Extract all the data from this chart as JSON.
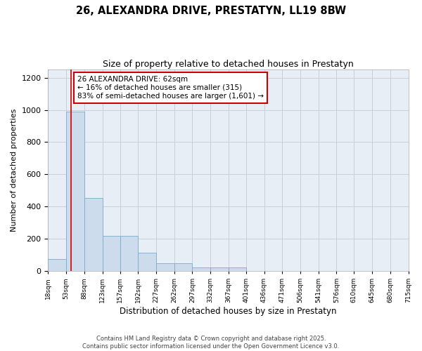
{
  "title1": "26, ALEXANDRA DRIVE, PRESTATYN, LL19 8BW",
  "title2": "Size of property relative to detached houses in Prestatyn",
  "xlabel": "Distribution of detached houses by size in Prestatyn",
  "ylabel": "Number of detached properties",
  "bin_edges": [
    18,
    53,
    88,
    123,
    157,
    192,
    227,
    262,
    297,
    332,
    367,
    401,
    436,
    471,
    506,
    541,
    576,
    610,
    645,
    680,
    715
  ],
  "bar_heights": [
    75,
    990,
    455,
    220,
    220,
    115,
    50,
    50,
    20,
    20,
    20,
    0,
    0,
    0,
    0,
    0,
    0,
    0,
    0,
    0
  ],
  "bar_color": "#ccdcec",
  "bar_edge_color": "#7aaac8",
  "grid_color": "#c8d0dc",
  "bg_color": "#e8eef6",
  "red_line_x": 62,
  "red_line_color": "#cc0000",
  "annotation_text": "26 ALEXANDRA DRIVE: 62sqm\n← 16% of detached houses are smaller (315)\n83% of semi-detached houses are larger (1,601) →",
  "annotation_box_color": "#ffffff",
  "annotation_box_edge": "#cc0000",
  "ylim": [
    0,
    1250
  ],
  "yticks": [
    0,
    200,
    400,
    600,
    800,
    1000,
    1200
  ],
  "footer1": "Contains HM Land Registry data © Crown copyright and database right 2025.",
  "footer2": "Contains public sector information licensed under the Open Government Licence v3.0.",
  "tick_labels": [
    "18sqm",
    "53sqm",
    "88sqm",
    "123sqm",
    "157sqm",
    "192sqm",
    "227sqm",
    "262sqm",
    "297sqm",
    "332sqm",
    "367sqm",
    "401sqm",
    "436sqm",
    "471sqm",
    "506sqm",
    "541sqm",
    "576sqm",
    "610sqm",
    "645sqm",
    "680sqm",
    "715sqm"
  ]
}
